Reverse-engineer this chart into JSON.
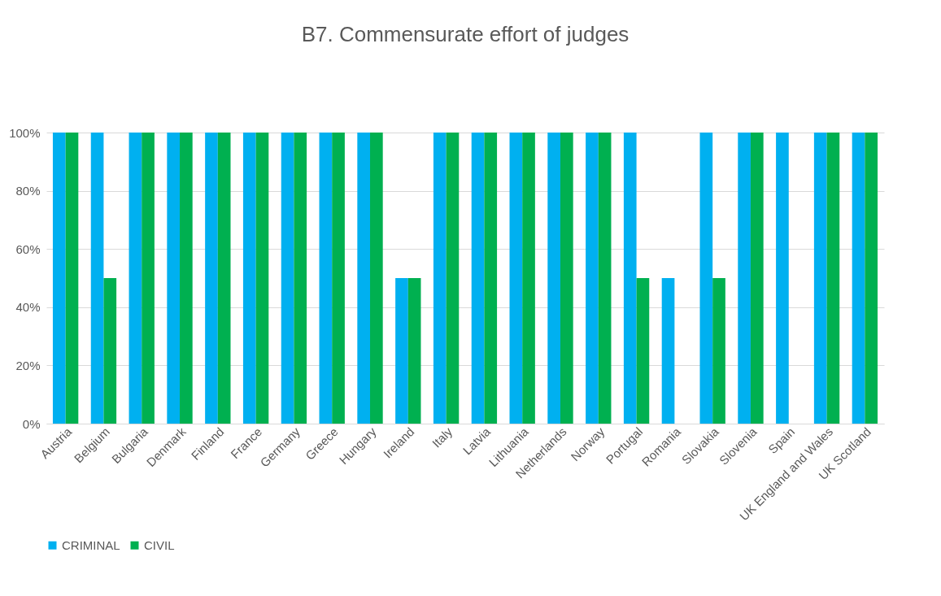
{
  "chart_data": {
    "type": "bar",
    "title": "B7. Commensurate effort of judges",
    "categories": [
      "Austria",
      "Belgium",
      "Bulgaria",
      "Denmark",
      "Finland",
      "France",
      "Germany",
      "Greece",
      "Hungary",
      "Ireland",
      "Italy",
      "Latvia",
      "Lithuania",
      "Netherlands",
      "Norway",
      "Portugal",
      "Romania",
      "Slovakia",
      "Slovenia",
      "Spain",
      "UK England and Wales",
      "UK Scotland"
    ],
    "series": [
      {
        "name": "CRIMINAL",
        "color": "#00b0f0",
        "values": [
          100,
          100,
          100,
          100,
          100,
          100,
          100,
          100,
          100,
          50,
          100,
          100,
          100,
          100,
          100,
          100,
          50,
          100,
          100,
          100,
          100,
          100
        ]
      },
      {
        "name": "CIVIL",
        "color": "#00b050",
        "values": [
          100,
          50,
          100,
          100,
          100,
          100,
          100,
          100,
          100,
          50,
          100,
          100,
          100,
          100,
          100,
          50,
          null,
          50,
          100,
          null,
          100,
          100
        ]
      }
    ],
    "ylim": [
      0,
      100
    ],
    "yticks": [
      {
        "value": 0,
        "label": "0%"
      },
      {
        "value": 20,
        "label": "20%"
      },
      {
        "value": 40,
        "label": "40%"
      },
      {
        "value": 60,
        "label": "60%"
      },
      {
        "value": 80,
        "label": "80%"
      },
      {
        "value": 100,
        "label": "100%"
      }
    ],
    "grid": "y",
    "legend": "bottom"
  }
}
